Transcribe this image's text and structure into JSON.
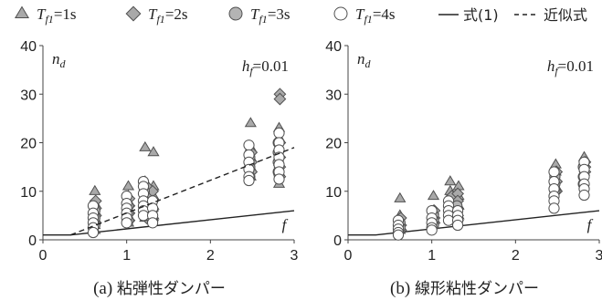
{
  "legend": [
    {
      "key": "tri",
      "sub": "f1",
      "value": "=1s",
      "marker": "triangle"
    },
    {
      "key": "dia",
      "sub": "f1",
      "value": "=2s",
      "marker": "diamond"
    },
    {
      "key": "circ_gray",
      "sub": "f1",
      "value": "=3s",
      "marker": "circle-gray"
    },
    {
      "key": "circ_white",
      "sub": "f1",
      "value": "=4s",
      "marker": "circle-white"
    }
  ],
  "legend_lines": {
    "solid_label": "式(1)",
    "dashed_label": "近似式"
  },
  "colors": {
    "tri_fill": "#a9a9a9",
    "dia_fill": "#a9a9a9",
    "circ_gray_fill": "#b4b4b4",
    "circ_white_fill": "#ffffff",
    "stroke": "#505050",
    "axis": "#444444"
  },
  "chart_data": [
    {
      "type": "scatter",
      "caption_prefix": "(a)",
      "caption_text": "粘弾性ダンパー",
      "ylabel": "n",
      "ylabel_sub": "d",
      "xlabel": "f",
      "annotation_main": "h",
      "annotation_sub": "f",
      "annotation_value": "=0.01",
      "xlim": [
        0,
        3
      ],
      "ylim": [
        0,
        40
      ],
      "xticks": [
        0,
        1,
        2,
        3
      ],
      "yticks": [
        0,
        10,
        20,
        30,
        40
      ],
      "formula_line": {
        "x": [
          0,
          0.33,
          3
        ],
        "y": [
          1,
          1,
          6
        ]
      },
      "approx_line": {
        "x": [
          0.33,
          3
        ],
        "y": [
          1,
          19
        ]
      },
      "series": [
        {
          "name": "T_f1=1s",
          "marker": "triangle",
          "points": [
            [
              0.62,
              10
            ],
            [
              0.62,
              7.5
            ],
            [
              0.62,
              6
            ],
            [
              0.62,
              4.5
            ],
            [
              0.62,
              3
            ],
            [
              0.62,
              2
            ],
            [
              1.02,
              11
            ],
            [
              1.02,
              9
            ],
            [
              1.02,
              7.5
            ],
            [
              1.02,
              6
            ],
            [
              1.02,
              4.5
            ],
            [
              1.02,
              3.5
            ],
            [
              1.22,
              19
            ],
            [
              1.22,
              12
            ],
            [
              1.22,
              10
            ],
            [
              1.22,
              8
            ],
            [
              1.22,
              6
            ],
            [
              1.22,
              4.5
            ],
            [
              1.32,
              18
            ],
            [
              1.32,
              11
            ],
            [
              1.32,
              9
            ],
            [
              1.32,
              7
            ],
            [
              1.32,
              5
            ],
            [
              2.48,
              24
            ],
            [
              2.48,
              19
            ],
            [
              2.48,
              17
            ],
            [
              2.48,
              15
            ],
            [
              2.48,
              13
            ],
            [
              2.82,
              23
            ],
            [
              2.82,
              21
            ],
            [
              2.82,
              19
            ],
            [
              2.82,
              16
            ],
            [
              2.82,
              14
            ],
            [
              2.82,
              11.5
            ]
          ]
        },
        {
          "name": "T_f1=2s",
          "marker": "diamond",
          "points": [
            [
              0.63,
              8
            ],
            [
              0.63,
              6.5
            ],
            [
              0.63,
              5
            ],
            [
              0.63,
              3.5
            ],
            [
              1.03,
              8.5
            ],
            [
              1.03,
              7
            ],
            [
              1.03,
              5.5
            ],
            [
              1.03,
              4
            ],
            [
              1.24,
              11
            ],
            [
              1.24,
              9
            ],
            [
              1.24,
              7.5
            ],
            [
              1.24,
              6
            ],
            [
              1.24,
              4.5
            ],
            [
              1.31,
              10
            ],
            [
              1.31,
              8
            ],
            [
              1.31,
              6
            ],
            [
              1.31,
              4
            ],
            [
              2.49,
              18
            ],
            [
              2.49,
              16
            ],
            [
              2.49,
              14
            ],
            [
              2.83,
              30
            ],
            [
              2.83,
              29
            ],
            [
              2.83,
              20
            ],
            [
              2.83,
              17
            ],
            [
              2.83,
              15
            ],
            [
              2.83,
              13
            ]
          ]
        },
        {
          "name": "T_f1=3s",
          "marker": "circle-gray",
          "points": [
            [
              0.62,
              6
            ],
            [
              0.62,
              4.5
            ],
            [
              0.62,
              3
            ],
            [
              1.02,
              7
            ],
            [
              1.02,
              5.5
            ],
            [
              1.02,
              4
            ],
            [
              1.21,
              10
            ],
            [
              1.21,
              8
            ],
            [
              1.21,
              6
            ],
            [
              1.21,
              5
            ],
            [
              1.3,
              7.5
            ],
            [
              1.3,
              6
            ],
            [
              1.3,
              4.5
            ],
            [
              2.47,
              17
            ],
            [
              2.47,
              15
            ],
            [
              2.47,
              13
            ],
            [
              2.81,
              20
            ],
            [
              2.81,
              18
            ],
            [
              2.81,
              16
            ],
            [
              2.81,
              14
            ]
          ]
        },
        {
          "name": "T_f1=4s",
          "marker": "circle-white",
          "points": [
            [
              0.6,
              7
            ],
            [
              0.6,
              5.5
            ],
            [
              0.6,
              4.5
            ],
            [
              0.6,
              3.5
            ],
            [
              0.6,
              2.5
            ],
            [
              0.6,
              1.5
            ],
            [
              1.0,
              9
            ],
            [
              1.0,
              7.5
            ],
            [
              1.0,
              6.5
            ],
            [
              1.0,
              5.5
            ],
            [
              1.0,
              4.5
            ],
            [
              1.0,
              3.5
            ],
            [
              1.2,
              12
            ],
            [
              1.2,
              11
            ],
            [
              1.2,
              9.5
            ],
            [
              1.2,
              8
            ],
            [
              1.2,
              7
            ],
            [
              1.2,
              6
            ],
            [
              1.2,
              5
            ],
            [
              1.31,
              8
            ],
            [
              1.31,
              6.5
            ],
            [
              1.31,
              5
            ],
            [
              1.31,
              3.5
            ],
            [
              2.46,
              19.5
            ],
            [
              2.46,
              17.5
            ],
            [
              2.46,
              16
            ],
            [
              2.46,
              14.5
            ],
            [
              2.46,
              13
            ],
            [
              2.46,
              12.2
            ],
            [
              2.82,
              22
            ],
            [
              2.82,
              20
            ],
            [
              2.82,
              18.5
            ],
            [
              2.82,
              17
            ],
            [
              2.82,
              15.5
            ],
            [
              2.82,
              14
            ],
            [
              2.82,
              12.5
            ]
          ]
        }
      ]
    },
    {
      "type": "scatter",
      "caption_prefix": "(b)",
      "caption_text": "線形粘性ダンパー",
      "ylabel": "n",
      "ylabel_sub": "d",
      "xlabel": "f",
      "annotation_main": "h",
      "annotation_sub": "f",
      "annotation_value": "=0.01",
      "xlim": [
        0,
        3
      ],
      "ylim": [
        0,
        40
      ],
      "xticks": [
        0,
        1,
        2,
        3
      ],
      "yticks": [
        0,
        10,
        20,
        30,
        40
      ],
      "formula_line": {
        "x": [
          0,
          0.33,
          3
        ],
        "y": [
          1,
          1,
          6
        ]
      },
      "approx_line": null,
      "series": [
        {
          "name": "T_f1=1s",
          "marker": "triangle",
          "points": [
            [
              0.62,
              8.5
            ],
            [
              0.62,
              5
            ],
            [
              0.62,
              3
            ],
            [
              0.62,
              2
            ],
            [
              1.02,
              9
            ],
            [
              1.02,
              6
            ],
            [
              1.02,
              4.5
            ],
            [
              1.02,
              3
            ],
            [
              1.22,
              12
            ],
            [
              1.22,
              10
            ],
            [
              1.22,
              8.5
            ],
            [
              1.22,
              7
            ],
            [
              1.22,
              6
            ],
            [
              1.32,
              11
            ],
            [
              1.32,
              9
            ],
            [
              1.32,
              7
            ],
            [
              1.32,
              5
            ],
            [
              2.48,
              15.5
            ],
            [
              2.48,
              14
            ],
            [
              2.48,
              12.5
            ],
            [
              2.48,
              11
            ],
            [
              2.82,
              17
            ],
            [
              2.82,
              15.5
            ],
            [
              2.82,
              14
            ]
          ]
        },
        {
          "name": "T_f1=2s",
          "marker": "diamond",
          "points": [
            [
              0.63,
              4.5
            ],
            [
              0.63,
              3
            ],
            [
              0.63,
              2
            ],
            [
              1.03,
              6
            ],
            [
              1.03,
              4.5
            ],
            [
              1.03,
              3.5
            ],
            [
              1.24,
              9
            ],
            [
              1.24,
              7.5
            ],
            [
              1.24,
              6
            ],
            [
              1.31,
              9.5
            ],
            [
              1.31,
              8
            ],
            [
              1.31,
              6.5
            ],
            [
              1.31,
              5
            ],
            [
              1.31,
              4
            ],
            [
              2.49,
              14
            ],
            [
              2.49,
              12
            ],
            [
              2.49,
              10
            ],
            [
              2.83,
              16
            ],
            [
              2.83,
              15
            ],
            [
              2.83,
              14
            ]
          ]
        },
        {
          "name": "T_f1=3s",
          "marker": "circle-gray",
          "points": [
            [
              0.62,
              3.5
            ],
            [
              0.62,
              2.5
            ],
            [
              1.02,
              5
            ],
            [
              1.02,
              4
            ],
            [
              1.02,
              3
            ],
            [
              1.21,
              7.5
            ],
            [
              1.21,
              6.5
            ],
            [
              1.21,
              5.5
            ],
            [
              1.3,
              7
            ],
            [
              1.3,
              5.5
            ],
            [
              1.3,
              4
            ],
            [
              2.47,
              13
            ],
            [
              2.47,
              11.5
            ],
            [
              2.47,
              10
            ],
            [
              2.81,
              15
            ],
            [
              2.81,
              13
            ],
            [
              2.81,
              11.5
            ]
          ]
        },
        {
          "name": "T_f1=4s",
          "marker": "circle-white",
          "points": [
            [
              0.6,
              4
            ],
            [
              0.6,
              3
            ],
            [
              0.6,
              2.2
            ],
            [
              0.6,
              1.5
            ],
            [
              0.6,
              1
            ],
            [
              1.0,
              6
            ],
            [
              1.0,
              4.5
            ],
            [
              1.0,
              3.5
            ],
            [
              1.0,
              2.5
            ],
            [
              1.0,
              2
            ],
            [
              1.2,
              8
            ],
            [
              1.2,
              7
            ],
            [
              1.2,
              6
            ],
            [
              1.2,
              5
            ],
            [
              1.2,
              4
            ],
            [
              1.31,
              6
            ],
            [
              1.31,
              5
            ],
            [
              1.31,
              4
            ],
            [
              1.31,
              3
            ],
            [
              2.46,
              14
            ],
            [
              2.46,
              12
            ],
            [
              2.46,
              10.5
            ],
            [
              2.46,
              9
            ],
            [
              2.46,
              8
            ],
            [
              2.46,
              6.5
            ],
            [
              2.82,
              16
            ],
            [
              2.82,
              14.5
            ],
            [
              2.82,
              13
            ],
            [
              2.82,
              11.5
            ],
            [
              2.82,
              10.5
            ],
            [
              2.82,
              9.2
            ]
          ]
        }
      ]
    }
  ]
}
